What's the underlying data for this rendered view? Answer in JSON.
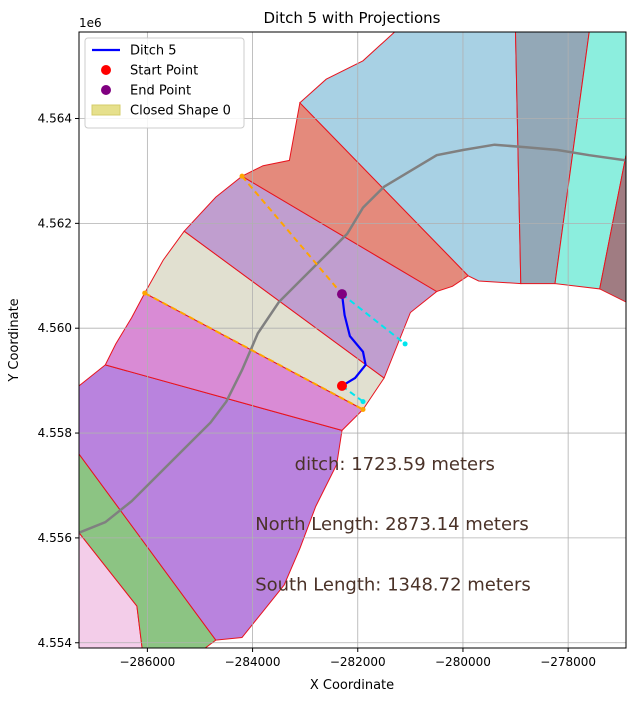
{
  "chart_data": {
    "type": "map",
    "title": "Ditch 5 with Projections",
    "xlabel": "X Coordinate",
    "ylabel": "Y Coordinate",
    "y_offset_label": "1e6",
    "xlim": [
      -287300,
      -276900
    ],
    "ylim": [
      4553900,
      4565650
    ],
    "grid": true,
    "legend_position": "upper-left",
    "x_ticks": [
      {
        "value": -286000,
        "label": "−286000"
      },
      {
        "value": -284000,
        "label": "−284000"
      },
      {
        "value": -282000,
        "label": "−282000"
      },
      {
        "value": -280000,
        "label": "−280000"
      },
      {
        "value": -278000,
        "label": "−278000"
      }
    ],
    "y_ticks": [
      {
        "value": 4554000,
        "label": "4.554"
      },
      {
        "value": 4556000,
        "label": "4.556"
      },
      {
        "value": 4558000,
        "label": "4.558"
      },
      {
        "value": 4560000,
        "label": "4.560"
      },
      {
        "value": 4562000,
        "label": "4.562"
      },
      {
        "value": 4564000,
        "label": "4.564"
      }
    ],
    "legend": [
      {
        "label": "Ditch 5",
        "kind": "line",
        "color": "#0000ff"
      },
      {
        "label": "Start Point",
        "kind": "dot",
        "color": "#ff0000"
      },
      {
        "label": "End Point",
        "kind": "dot",
        "color": "#800080"
      },
      {
        "label": "Closed Shape 0",
        "kind": "patch",
        "color": "#e6e08c"
      }
    ],
    "annotations": [
      {
        "text": "ditch: 1723.59 meters",
        "x": -283200,
        "y": 4557300
      },
      {
        "text": "North Length: 2873.14 meters",
        "x": -283950,
        "y": 4556150
      },
      {
        "text": "South Length: 1348.72 meters",
        "x": -283950,
        "y": 4555000
      }
    ],
    "polygons": [
      {
        "color": "#f3cde9",
        "points": [
          [
            -287300,
            4556100
          ],
          [
            -286200,
            4554700
          ],
          [
            -286100,
            4553900
          ],
          [
            -287300,
            4553900
          ]
        ]
      },
      {
        "color": "#8cc483",
        "points": [
          [
            -287300,
            4557600
          ],
          [
            -284700,
            4554050
          ],
          [
            -284900,
            4553900
          ],
          [
            -286100,
            4553900
          ],
          [
            -286200,
            4554700
          ],
          [
            -287300,
            4556100
          ]
        ]
      },
      {
        "color": "#b983de",
        "points": [
          [
            -287300,
            4558900
          ],
          [
            -286800,
            4559300
          ],
          [
            -282300,
            4558050
          ],
          [
            -282400,
            4557400
          ],
          [
            -282800,
            4556600
          ],
          [
            -283100,
            4555800
          ],
          [
            -283400,
            4555100
          ],
          [
            -283800,
            4554600
          ],
          [
            -284200,
            4554100
          ],
          [
            -284700,
            4554050
          ],
          [
            -287300,
            4557600
          ]
        ]
      },
      {
        "color": "#d98bd5",
        "points": [
          [
            -286800,
            4559300
          ],
          [
            -286600,
            4559700
          ],
          [
            -286300,
            4560200
          ],
          [
            -286050,
            4560670
          ],
          [
            -281900,
            4558450
          ],
          [
            -282300,
            4558050
          ]
        ]
      },
      {
        "color": "#e1e0d0",
        "points": [
          [
            -286050,
            4560670
          ],
          [
            -285700,
            4561300
          ],
          [
            -285300,
            4561850
          ],
          [
            -281500,
            4559050
          ],
          [
            -281900,
            4558450
          ]
        ]
      },
      {
        "color": "#c09ecf",
        "points": [
          [
            -285300,
            4561850
          ],
          [
            -284700,
            4562500
          ],
          [
            -284200,
            4562900
          ],
          [
            -280500,
            4560700
          ],
          [
            -281000,
            4560300
          ],
          [
            -281500,
            4559050
          ]
        ]
      },
      {
        "color": "#e48a7c",
        "points": [
          [
            -284200,
            4562900
          ],
          [
            -283800,
            4563100
          ],
          [
            -283300,
            4563200
          ],
          [
            -283100,
            4564300
          ],
          [
            -279900,
            4561000
          ],
          [
            -280200,
            4560800
          ],
          [
            -280500,
            4560700
          ]
        ]
      },
      {
        "color": "#a8d1e4",
        "points": [
          [
            -283100,
            4564300
          ],
          [
            -282600,
            4564750
          ],
          [
            -281900,
            4565100
          ],
          [
            -281300,
            4565650
          ],
          [
            -279000,
            4565650
          ],
          [
            -278900,
            4560850
          ],
          [
            -279700,
            4560900
          ],
          [
            -279900,
            4561000
          ]
        ]
      },
      {
        "color": "#93a8b7",
        "points": [
          [
            -279000,
            4565650
          ],
          [
            -277600,
            4565650
          ],
          [
            -278250,
            4560850
          ],
          [
            -278900,
            4560850
          ]
        ]
      },
      {
        "color": "#8ceede",
        "points": [
          [
            -277600,
            4565650
          ],
          [
            -276900,
            4565650
          ],
          [
            -276900,
            4563300
          ],
          [
            -277400,
            4560750
          ],
          [
            -278250,
            4560850
          ]
        ]
      },
      {
        "color": "#a07c82",
        "points": [
          [
            -276900,
            4563300
          ],
          [
            -276900,
            4560500
          ],
          [
            -277400,
            4560750
          ]
        ]
      }
    ],
    "gray_path": [
      [
        -287300,
        4556100
      ],
      [
        -286800,
        4556300
      ],
      [
        -286300,
        4556700
      ],
      [
        -285800,
        4557200
      ],
      [
        -285300,
        4557700
      ],
      [
        -284800,
        4558200
      ],
      [
        -284500,
        4558600
      ],
      [
        -284200,
        4559200
      ],
      [
        -283900,
        4559900
      ],
      [
        -283500,
        4560500
      ],
      [
        -283100,
        4560900
      ],
      [
        -282600,
        4561400
      ],
      [
        -282200,
        4561800
      ],
      [
        -281900,
        4562300
      ],
      [
        -281500,
        4562700
      ],
      [
        -281000,
        4563000
      ],
      [
        -280500,
        4563300
      ],
      [
        -280000,
        4563400
      ],
      [
        -279400,
        4563500
      ],
      [
        -278800,
        4563450
      ],
      [
        -278200,
        4563400
      ],
      [
        -277600,
        4563300
      ],
      [
        -276900,
        4563200
      ]
    ],
    "ditch_5": [
      [
        -282300,
        4558900
      ],
      [
        -282050,
        4559050
      ],
      [
        -281850,
        4559300
      ],
      [
        -281900,
        4559550
      ],
      [
        -282150,
        4559850
      ],
      [
        -282250,
        4560250
      ],
      [
        -282300,
        4560650
      ]
    ],
    "start_point": [
      -282300,
      4558900
    ],
    "end_point": [
      -282300,
      4560650
    ],
    "orange_lines": [
      [
        [
          -286050,
          4560670
        ],
        [
          -281900,
          4558450
        ]
      ],
      [
        [
          -284200,
          4562900
        ],
        [
          -282300,
          4560650
        ]
      ]
    ],
    "cyan_lines": [
      [
        [
          -282300,
          4558900
        ],
        [
          -281900,
          4558600
        ]
      ],
      [
        [
          -282300,
          4560650
        ],
        [
          -281100,
          4559700
        ]
      ]
    ]
  }
}
